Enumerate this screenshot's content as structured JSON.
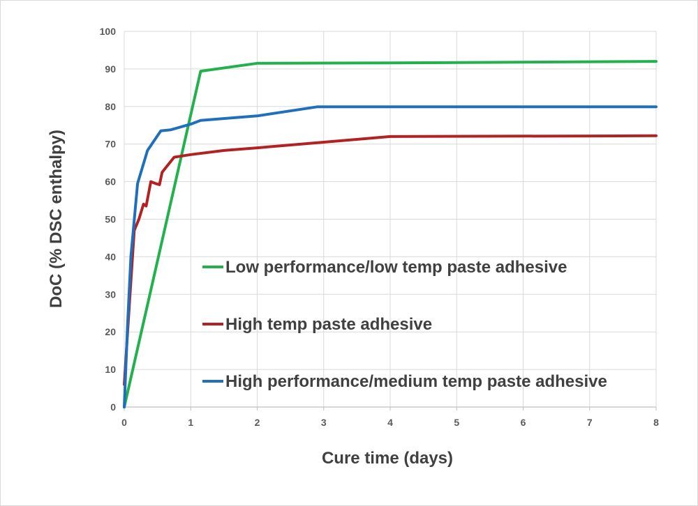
{
  "chart_data": {
    "type": "line",
    "title": "",
    "xlabel": "Cure time (days)",
    "ylabel": "DoC (% DSC enthalpy)",
    "xlim": [
      0,
      8
    ],
    "ylim": [
      0,
      100
    ],
    "x_ticks": [
      "0",
      "1",
      "2",
      "3",
      "4",
      "5",
      "6",
      "7",
      "8"
    ],
    "y_ticks": [
      "0",
      "10",
      "20",
      "30",
      "40",
      "50",
      "60",
      "70",
      "80",
      "90",
      "100"
    ],
    "grid": true,
    "legend_position": "center-right",
    "series": [
      {
        "name": "Low performance/low temp paste adhesive",
        "color": "#22b14c",
        "points": [
          [
            0,
            0
          ],
          [
            1.15,
            89.4
          ],
          [
            2,
            91.5
          ],
          [
            4,
            91.6
          ],
          [
            8,
            92.0
          ]
        ]
      },
      {
        "name": "High temp paste adhesive",
        "color": "#b22222",
        "points": [
          [
            0,
            6
          ],
          [
            0.08,
            28
          ],
          [
            0.15,
            47
          ],
          [
            0.22,
            50
          ],
          [
            0.29,
            54
          ],
          [
            0.33,
            53.5
          ],
          [
            0.4,
            60
          ],
          [
            0.47,
            59.5
          ],
          [
            0.53,
            59.2
          ],
          [
            0.57,
            62.5
          ],
          [
            0.75,
            66.5
          ],
          [
            1,
            67.2
          ],
          [
            1.5,
            68.3
          ],
          [
            2,
            69
          ],
          [
            3,
            70.5
          ],
          [
            4,
            72
          ],
          [
            8,
            72.2
          ]
        ]
      },
      {
        "name": "High performance/medium temp paste adhesive",
        "color": "#1f6fbd",
        "points": [
          [
            0,
            0
          ],
          [
            0.05,
            22
          ],
          [
            0.1,
            40
          ],
          [
            0.2,
            59.5
          ],
          [
            0.35,
            68.3
          ],
          [
            0.55,
            73.5
          ],
          [
            0.7,
            73.8
          ],
          [
            1,
            75.3
          ],
          [
            1.15,
            76.3
          ],
          [
            2,
            77.5
          ],
          [
            2.9,
            79.9
          ],
          [
            8,
            79.9
          ]
        ]
      }
    ]
  }
}
